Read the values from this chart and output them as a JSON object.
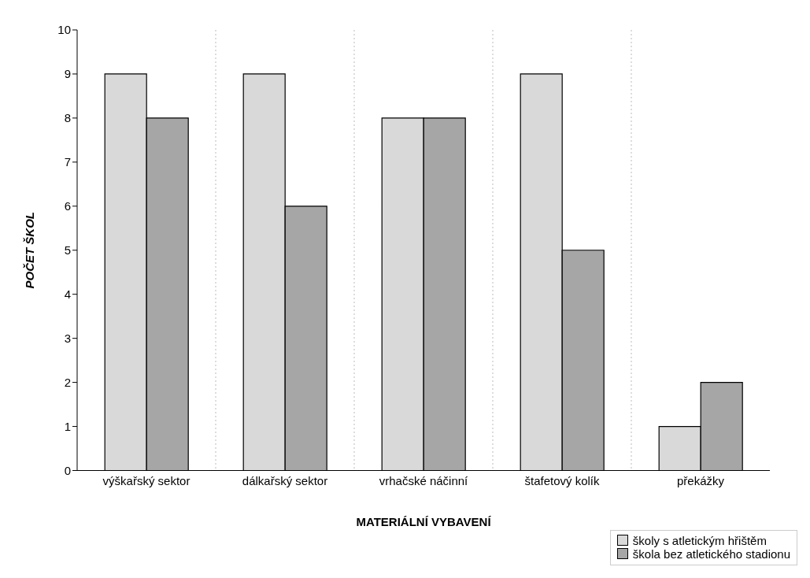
{
  "chart_data": {
    "type": "bar",
    "xlabel": "MATERIÁLNÍ VYBAVENÍ",
    "ylabel": "POČET ŠKOL",
    "categories": [
      "výškařský sektor",
      "dálkařský sektor",
      "vrhačské náčinní",
      "štafetový kolík",
      "překážky"
    ],
    "series": [
      {
        "name": "školy s atletickým hřištěm",
        "color": "#d9d9d9",
        "values": [
          9,
          9,
          8,
          9,
          1
        ]
      },
      {
        "name": "škola bez atletického stadionu",
        "color": "#a6a6a6",
        "values": [
          8,
          6,
          8,
          5,
          2
        ]
      }
    ],
    "ylim": [
      0,
      10
    ],
    "yticks": [
      0,
      1,
      2,
      3,
      4,
      5,
      6,
      7,
      8,
      9,
      10
    ],
    "grid": "x",
    "legend": "bottom right"
  }
}
